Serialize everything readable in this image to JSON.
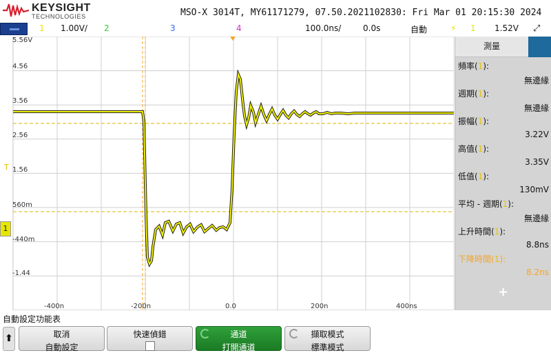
{
  "header": {
    "brand": "KEYSIGHT",
    "brand_sub": "TECHNOLOGIES",
    "device_info": "MSO-X 3014T, MY61171279, 07.50.2021102830: Fri Mar 01 20:15:30 2024"
  },
  "channel_bar": {
    "ch1_num": "1",
    "ch1_scale": "1.00V/",
    "ch2_num": "2",
    "ch3_num": "3",
    "ch4_num": "4",
    "timebase": "100.0ns/",
    "delay": "0.0s",
    "trigger_mode": "自動",
    "trigger_source": "1",
    "trigger_level": "1.52V",
    "colors": {
      "ch1": "#e6e600",
      "ch2": "#33cc33",
      "ch3": "#3366ff",
      "ch4": "#cc33cc"
    }
  },
  "grid": {
    "y_labels": [
      "5.56V",
      "4.56",
      "3.56",
      "2.56",
      "1.56",
      "560m",
      "-440m",
      "-1.44"
    ],
    "x_labels": [
      "-400n",
      "-200n",
      "0.0",
      "200n",
      "400ns"
    ]
  },
  "side_panel": {
    "title": "測量",
    "measurements": [
      {
        "label": "頻率(",
        "ch": "1",
        "label_end": "):",
        "value": "無邊緣"
      },
      {
        "label": "週期(",
        "ch": "1",
        "label_end": "):",
        "value": "無邊緣"
      },
      {
        "label": "振幅(",
        "ch": "1",
        "label_end": "):",
        "value": "3.22V"
      },
      {
        "label": "高值(",
        "ch": "1",
        "label_end": "):",
        "value": "3.35V"
      },
      {
        "label": "低值(",
        "ch": "1",
        "label_end": "):",
        "value": "130mV"
      },
      {
        "label": "平均 - 週期(",
        "ch": "1",
        "label_end": "):",
        "value": "無邊緣"
      },
      {
        "label": "上升時間(",
        "ch": "1",
        "label_end": "):",
        "value": "8.8ns"
      },
      {
        "label": "下降時間(",
        "ch": "1",
        "label_end": "):",
        "value": "8.2ns"
      }
    ],
    "add_symbol": "+"
  },
  "softkeys": {
    "menu_title": "自動設定功能表",
    "buttons": [
      {
        "line1": "取消",
        "line2": "自動設定"
      },
      {
        "line1": "快速偵錯",
        "line2": ""
      },
      {
        "line1": "通道",
        "line2": "打開通道"
      },
      {
        "line1": "擷取模式",
        "line2": "標準模式"
      }
    ]
  }
}
